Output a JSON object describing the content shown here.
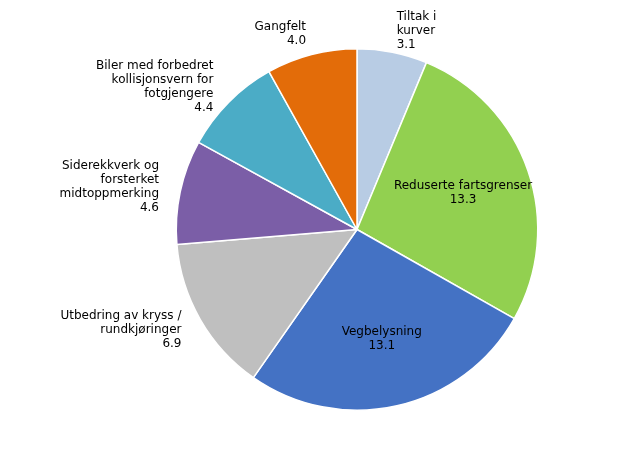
{
  "chart_data": {
    "type": "pie",
    "categories": [
      "Tiltak i\nkurver",
      "Reduserte fartsgrenser",
      "Vegbelysning",
      "Utbedring av kryss /\nrundkjøringer",
      "Siderekkverk og\nforsterket\nmidtoppmerking",
      "Biler med forbedret\nkollisjonsvern for\nfotgjengere",
      "Gangfelt"
    ],
    "values": [
      3.1,
      13.3,
      13.1,
      6.9,
      4.6,
      4.4,
      4.0
    ],
    "value_labels": [
      "3.1",
      "13.3",
      "13.1",
      "6.9",
      "4.6",
      "4.4",
      "4.0"
    ],
    "colors": [
      "#B8CCE4",
      "#92D050",
      "#4472C4",
      "#BFBFBF",
      "#7B5EA7",
      "#4BACC6",
      "#E36C09"
    ],
    "data_labels": true
  }
}
